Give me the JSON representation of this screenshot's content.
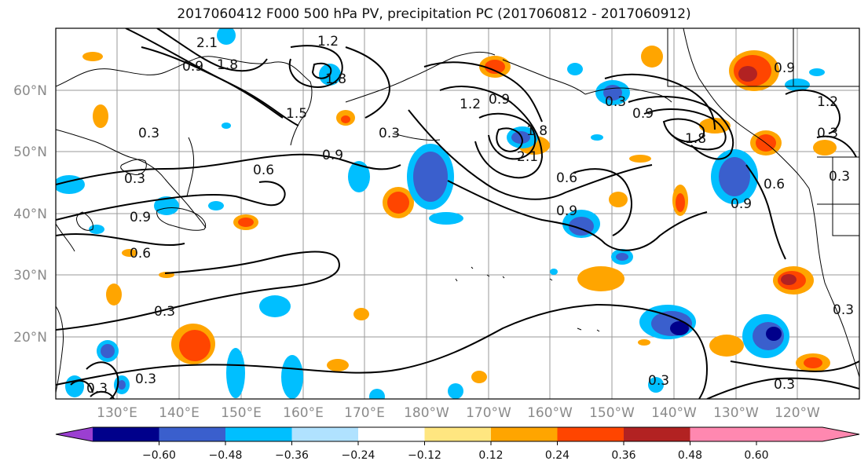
{
  "title": "2017060412 F000 500 hPa PV, precipitation PC (2017060812 - 2017060912)",
  "map": {
    "lat_labels": [
      "60°N",
      "50°N",
      "40°N",
      "30°N",
      "20°N"
    ],
    "lon_labels": [
      "130°E",
      "140°E",
      "150°E",
      "160°E",
      "170°E",
      "180°W",
      "170°W",
      "160°W",
      "150°W",
      "140°W",
      "130°W",
      "120°W"
    ],
    "contour_labels": [
      "0.3",
      "0.6",
      "0.9",
      "1.2",
      "1.5",
      "1.8",
      "2.1"
    ]
  },
  "colorbar": {
    "tick_labels": [
      "−0.60",
      "−0.48",
      "−0.36",
      "−0.24",
      "−0.12",
      "0.12",
      "0.24",
      "0.36",
      "0.48",
      "0.60"
    ],
    "colors": [
      "#9b3fd1",
      "#00008b",
      "#3a5fcd",
      "#00bfff",
      "#b0e2ff",
      "#ffffff",
      "#ffe680",
      "#ffa500",
      "#ff4500",
      "#b22222",
      "#ff88b0"
    ]
  }
}
